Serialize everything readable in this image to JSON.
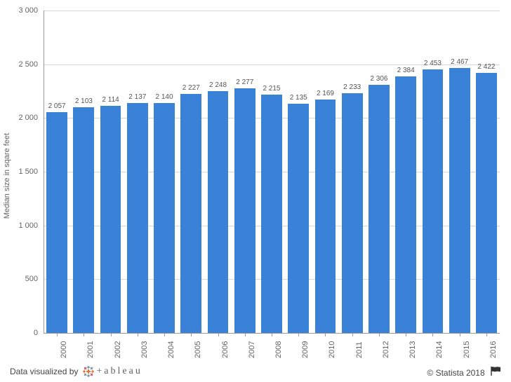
{
  "chart": {
    "type": "bar",
    "ylabel": "Median size in sqare feet",
    "ylim": [
      0,
      3000
    ],
    "ytick_step": 500,
    "yticks": [
      {
        "v": 0,
        "label": "0"
      },
      {
        "v": 500,
        "label": "500"
      },
      {
        "v": 1000,
        "label": "1 000"
      },
      {
        "v": 1500,
        "label": "1 500"
      },
      {
        "v": 2000,
        "label": "2 000"
      },
      {
        "v": 2500,
        "label": "2 500"
      },
      {
        "v": 3000,
        "label": "3 000"
      }
    ],
    "categories": [
      "2000",
      "2001",
      "2002",
      "2003",
      "2004",
      "2005",
      "2006",
      "2007",
      "2008",
      "2009",
      "2010",
      "2011",
      "2012",
      "2013",
      "2014",
      "2015",
      "2016"
    ],
    "values": [
      2057,
      2103,
      2114,
      2137,
      2140,
      2227,
      2248,
      2277,
      2215,
      2135,
      2169,
      2233,
      2306,
      2384,
      2453,
      2467,
      2422
    ],
    "value_labels": [
      "2 057",
      "2 103",
      "2 114",
      "2 137",
      "2 140",
      "2 227",
      "2 248",
      "2 277",
      "2 215",
      "2 135",
      "2 169",
      "2 233",
      "2 306",
      "2 384",
      "2 453",
      "2 467",
      "2 422"
    ],
    "bar_color": "#3a82d8",
    "bar_width_ratio": 0.78,
    "grid_color": "#d6d6d6",
    "axis_color": "#999999",
    "text_color": "#646464",
    "label_fontsize": 11,
    "value_label_fontsize": 10,
    "background_color": "#ffffff"
  },
  "footer": {
    "visualized_by": "Data visualized by",
    "tableau_word": "+ableau",
    "copyright": "© Statista 2018"
  }
}
